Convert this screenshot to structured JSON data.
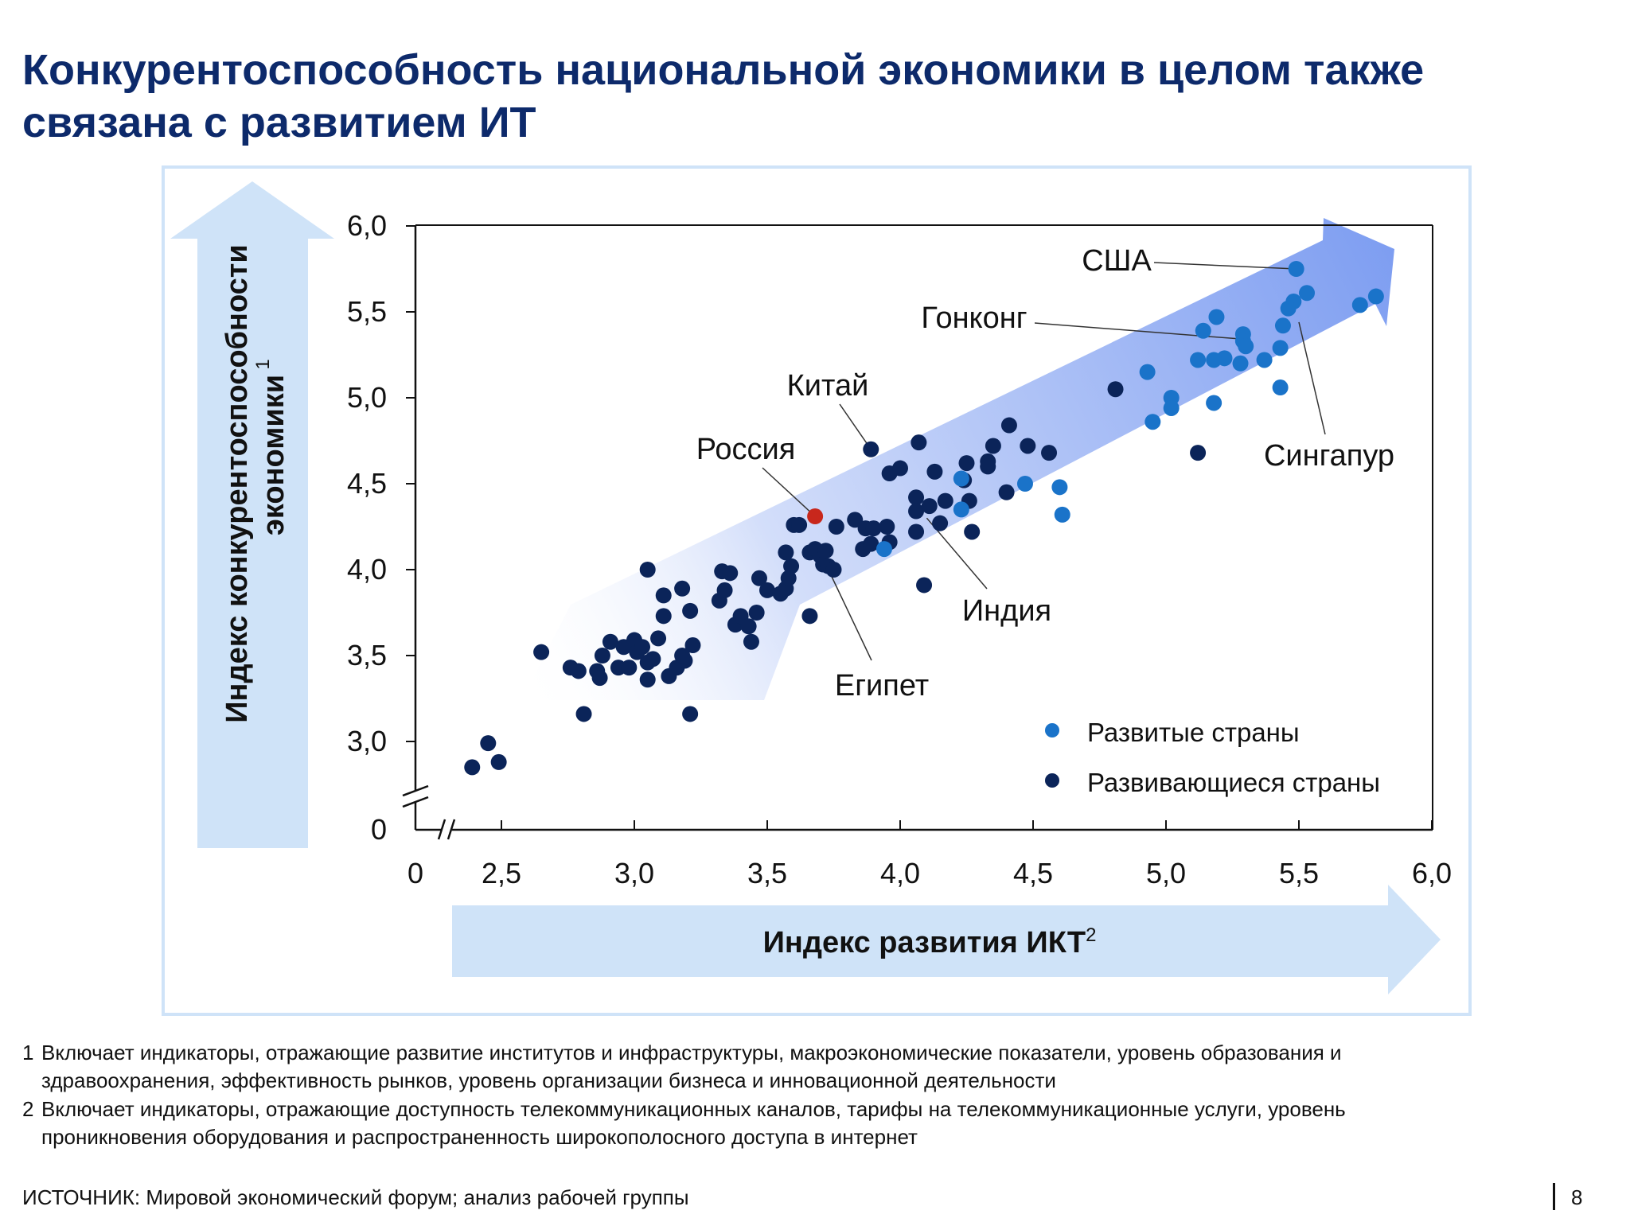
{
  "title": {
    "line1": "Конкурентоспособность национальной экономики в целом также",
    "line2": "связана с развитием ИТ"
  },
  "colors": {
    "title": "#0d2a6b",
    "developed": "#1a73c9",
    "developing": "#0b2459",
    "russia": "#c8271c",
    "arrow_light": "#cfe3f8",
    "frame": "#cfe3f8"
  },
  "chart_data": {
    "type": "scatter",
    "xlabel": "Индекс развития ИКТ",
    "xlabel_sup": "2",
    "ylabel_line1": "Индекс конкурентоспособности",
    "ylabel_line2": "экономики",
    "ylabel_sup": "1",
    "xlim": [
      0,
      6.0
    ],
    "ylim": [
      0,
      6.0
    ],
    "axis_break": true,
    "x_ticks": [
      "0",
      "2,5",
      "3,0",
      "3,5",
      "4,0",
      "4,5",
      "5,0",
      "5,5",
      "6,0"
    ],
    "y_ticks": [
      "0",
      "3,0",
      "3,5",
      "4,0",
      "4,5",
      "5,0",
      "5,5",
      "6,0"
    ],
    "legend": {
      "placement": "bottom-right",
      "developed": "Развитые страны",
      "developing": "Развивающиеся страны"
    },
    "annotations": [
      {
        "label": "США",
        "x": 5.49,
        "y": 5.75
      },
      {
        "label": "Гонконг",
        "x": 5.3,
        "y": 5.34
      },
      {
        "label": "Китай",
        "x": 3.89,
        "y": 4.7
      },
      {
        "label": "Россия",
        "x": 3.68,
        "y": 4.31
      },
      {
        "label": "Сингапур",
        "x": 5.5,
        "y": 5.44
      },
      {
        "label": "Индия",
        "x": 4.1,
        "y": 4.3
      },
      {
        "label": "Египет",
        "x": 3.73,
        "y": 4.0
      }
    ],
    "series": [
      {
        "name": "Развитые страны",
        "points": [
          [
            5.49,
            5.75
          ],
          [
            5.53,
            5.61
          ],
          [
            5.48,
            5.56
          ],
          [
            5.46,
            5.52
          ],
          [
            5.44,
            5.42
          ],
          [
            5.43,
            5.29
          ],
          [
            5.43,
            5.06
          ],
          [
            5.19,
            5.47
          ],
          [
            5.14,
            5.39
          ],
          [
            5.29,
            5.37
          ],
          [
            5.29,
            5.33
          ],
          [
            5.3,
            5.3
          ],
          [
            5.37,
            5.22
          ],
          [
            5.28,
            5.2
          ],
          [
            5.22,
            5.23
          ],
          [
            5.18,
            5.22
          ],
          [
            5.12,
            5.22
          ],
          [
            5.18,
            4.97
          ],
          [
            5.02,
            5.0
          ],
          [
            5.02,
            4.94
          ],
          [
            4.93,
            5.15
          ],
          [
            4.95,
            4.86
          ],
          [
            5.73,
            5.54
          ],
          [
            5.79,
            5.59
          ],
          [
            4.61,
            4.32
          ],
          [
            4.6,
            4.48
          ],
          [
            4.47,
            4.5
          ],
          [
            4.23,
            4.35
          ],
          [
            4.23,
            4.53
          ],
          [
            3.94,
            4.12
          ]
        ]
      },
      {
        "name": "Развивающиеся страны",
        "points": [
          [
            2.39,
            2.85
          ],
          [
            2.45,
            2.99
          ],
          [
            2.49,
            2.88
          ],
          [
            2.65,
            3.52
          ],
          [
            2.76,
            3.43
          ],
          [
            2.79,
            3.41
          ],
          [
            2.81,
            3.16
          ],
          [
            2.86,
            3.41
          ],
          [
            2.87,
            3.37
          ],
          [
            2.88,
            3.5
          ],
          [
            2.91,
            3.58
          ],
          [
            2.94,
            3.43
          ],
          [
            2.96,
            3.55
          ],
          [
            2.98,
            3.43
          ],
          [
            3.0,
            3.59
          ],
          [
            3.01,
            3.52
          ],
          [
            3.03,
            3.55
          ],
          [
            3.05,
            3.46
          ],
          [
            3.05,
            3.36
          ],
          [
            3.07,
            3.48
          ],
          [
            3.09,
            3.6
          ],
          [
            3.11,
            3.73
          ],
          [
            3.11,
            3.85
          ],
          [
            3.05,
            4.0
          ],
          [
            3.13,
            3.38
          ],
          [
            3.16,
            3.43
          ],
          [
            3.18,
            3.89
          ],
          [
            3.19,
            3.47
          ],
          [
            3.21,
            3.76
          ],
          [
            3.21,
            3.16
          ],
          [
            3.22,
            3.56
          ],
          [
            3.18,
            3.5
          ],
          [
            3.32,
            3.82
          ],
          [
            3.33,
            3.99
          ],
          [
            3.34,
            3.88
          ],
          [
            3.36,
            3.98
          ],
          [
            3.38,
            3.68
          ],
          [
            3.4,
            3.73
          ],
          [
            3.43,
            3.67
          ],
          [
            3.44,
            3.58
          ],
          [
            3.46,
            3.75
          ],
          [
            3.47,
            3.95
          ],
          [
            3.5,
            3.88
          ],
          [
            3.55,
            3.86
          ],
          [
            3.57,
            3.89
          ],
          [
            3.58,
            3.95
          ],
          [
            3.59,
            4.02
          ],
          [
            3.57,
            4.1
          ],
          [
            3.6,
            4.26
          ],
          [
            3.62,
            4.26
          ],
          [
            3.66,
            4.1
          ],
          [
            3.68,
            4.12
          ],
          [
            3.7,
            4.08
          ],
          [
            3.71,
            4.03
          ],
          [
            3.72,
            4.11
          ],
          [
            3.73,
            4.02
          ],
          [
            3.75,
            4.0
          ],
          [
            3.66,
            3.73
          ],
          [
            3.76,
            4.25
          ],
          [
            3.83,
            4.29
          ],
          [
            3.86,
            4.12
          ],
          [
            3.87,
            4.24
          ],
          [
            3.89,
            4.15
          ],
          [
            3.9,
            4.24
          ],
          [
            3.89,
            4.7
          ],
          [
            3.95,
            4.25
          ],
          [
            3.96,
            4.56
          ],
          [
            4.0,
            4.59
          ],
          [
            3.96,
            4.16
          ],
          [
            4.06,
            4.42
          ],
          [
            4.06,
            4.34
          ],
          [
            4.07,
            4.74
          ],
          [
            4.06,
            4.22
          ],
          [
            4.09,
            3.91
          ],
          [
            4.11,
            4.37
          ],
          [
            4.13,
            4.57
          ],
          [
            4.15,
            4.27
          ],
          [
            4.17,
            4.4
          ],
          [
            4.24,
            4.52
          ],
          [
            4.25,
            4.62
          ],
          [
            4.26,
            4.4
          ],
          [
            4.27,
            4.22
          ],
          [
            4.33,
            4.63
          ],
          [
            4.33,
            4.6
          ],
          [
            4.35,
            4.72
          ],
          [
            4.41,
            4.84
          ],
          [
            4.4,
            4.45
          ],
          [
            4.48,
            4.72
          ],
          [
            4.56,
            4.68
          ],
          [
            4.81,
            5.05
          ],
          [
            5.12,
            4.68
          ],
          [
            3.68,
            4.31
          ]
        ]
      }
    ]
  },
  "footnotes": [
    {
      "num": "1",
      "line1": "Включает индикаторы, отражающие развитие институтов и инфраструктуры, макроэкономические показатели, уровень образования и",
      "line2": "здравоохранения, эффективность рынков, уровень организации бизнеса и инновационной деятельности"
    },
    {
      "num": "2",
      "line1": "Включает индикаторы, отражающие доступность телекоммуникационных каналов, тарифы на телекоммуникационные услуги, уровень",
      "line2": "проникновения оборудования и распространенность широкополосного доступа в интернет"
    }
  ],
  "source": "ИСТОЧНИК: Мировой экономический форум; анализ рабочей группы",
  "page_number": "8"
}
